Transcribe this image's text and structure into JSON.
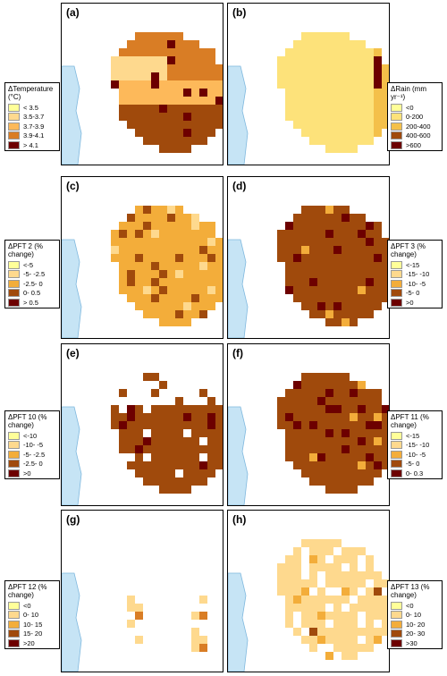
{
  "panels": [
    {
      "id": "a",
      "label": "(a)",
      "palette": [
        "#ffff99",
        "#fed98e",
        "#fdb95a",
        "#d97d25",
        "#a04a0c",
        "#6d0000"
      ],
      "pattern": "temp"
    },
    {
      "id": "b",
      "label": "(b)",
      "palette": [
        "#ffff99",
        "#fde27a",
        "#f4c04a",
        "#d87a20",
        "#a04a0c",
        "#6d0000"
      ],
      "pattern": "rain"
    },
    {
      "id": "c",
      "label": "(c)",
      "palette": [
        "#ffff99",
        "#fed98e",
        "#f3ad3a",
        "#d97d25",
        "#a04a0c",
        "#6d0000"
      ],
      "pattern": "pft2"
    },
    {
      "id": "d",
      "label": "(d)",
      "palette": [
        "#ffff99",
        "#fed98e",
        "#f3ad3a",
        "#d97d25",
        "#a04a0c",
        "#6d0000"
      ],
      "pattern": "pft3"
    },
    {
      "id": "e",
      "label": "(e)",
      "palette": [
        "#ffff99",
        "#fed98e",
        "#f3ad3a",
        "#d97d25",
        "#a04a0c",
        "#6d0000"
      ],
      "pattern": "pft10"
    },
    {
      "id": "f",
      "label": "(f)",
      "palette": [
        "#ffff99",
        "#fed98e",
        "#f3ad3a",
        "#d97d25",
        "#a04a0c",
        "#6d0000"
      ],
      "pattern": "pft11"
    },
    {
      "id": "g",
      "label": "(g)",
      "palette": [
        "#ffff99",
        "#fed98e",
        "#f3ad3a",
        "#d97d25",
        "#a04a0c",
        "#6d0000"
      ],
      "pattern": "pft12"
    },
    {
      "id": "h",
      "label": "(h)",
      "palette": [
        "#ffff99",
        "#fed98e",
        "#f3ad3a",
        "#d97d25",
        "#a04a0c",
        "#6d0000"
      ],
      "pattern": "pft13"
    }
  ],
  "legends": {
    "temp": {
      "title": "ΔTemperature (°C)",
      "items": [
        "< 3.5",
        "3.5-3.7",
        "3.7-3.9",
        "3.9-4.1",
        "> 4.1"
      ],
      "colors": [
        "#ffff99",
        "#fed98e",
        "#fdb95a",
        "#d97d25",
        "#6d0000"
      ]
    },
    "rain": {
      "title": "ΔRain (mm yr⁻¹)",
      "items": [
        "<0",
        "0-200",
        "200-400",
        "400-600",
        ">600"
      ],
      "colors": [
        "#ffff99",
        "#fde27a",
        "#f4c04a",
        "#a04a0c",
        "#6d0000"
      ]
    },
    "pft2": {
      "title": "ΔPFT 2 (% change)",
      "items": [
        "<-5",
        "-5- -2.5",
        "-2.5- 0",
        "0- 0.5",
        "> 0.5"
      ],
      "colors": [
        "#ffff99",
        "#fed98e",
        "#f3ad3a",
        "#a04a0c",
        "#6d0000"
      ]
    },
    "pft3": {
      "title": "ΔPFT 3 (% change)",
      "items": [
        "<-15",
        "-15- -10",
        "-10- -5",
        "-5- 0",
        ">0"
      ],
      "colors": [
        "#ffff99",
        "#fed98e",
        "#f3ad3a",
        "#a04a0c",
        "#6d0000"
      ]
    },
    "pft10": {
      "title": "ΔPFT 10 (% change)",
      "items": [
        "<-10",
        "-10- -5",
        "-5- -2.5",
        "-2.5- 0",
        ">0"
      ],
      "colors": [
        "#ffff99",
        "#fed98e",
        "#f3ad3a",
        "#a04a0c",
        "#6d0000"
      ]
    },
    "pft11": {
      "title": "ΔPFT 11 (% change)",
      "items": [
        "<-15",
        "-15- -10",
        "-10- -5",
        "-5- 0",
        "0- 0.3"
      ],
      "colors": [
        "#ffff99",
        "#fed98e",
        "#f3ad3a",
        "#a04a0c",
        "#6d0000"
      ]
    },
    "pft12": {
      "title": "ΔPFT 12 (% change)",
      "items": [
        "<0",
        "0- 10",
        "10- 15",
        "15- 20",
        ">20"
      ],
      "colors": [
        "#ffff99",
        "#fed98e",
        "#f3ad3a",
        "#a04a0c",
        "#6d0000"
      ]
    },
    "pft13": {
      "title": "ΔPFT 13 (% change)",
      "items": [
        "<0",
        "0- 10",
        "10- 20",
        "20- 30",
        ">30"
      ],
      "colors": [
        "#ffff99",
        "#fed98e",
        "#f3ad3a",
        "#a04a0c",
        "#6d0000"
      ]
    }
  },
  "colors": {
    "ocean": "#c6e4f5",
    "coast": "#7fb8de"
  }
}
